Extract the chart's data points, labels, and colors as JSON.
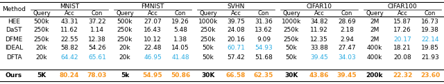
{
  "columns": {
    "datasets": [
      "MNIST",
      "FMNIST",
      "SVHN",
      "CIFAR10",
      "CIFAR100"
    ],
    "subcols": [
      "Query",
      "Acc",
      "Con"
    ]
  },
  "methods": [
    "HEE",
    "DaST",
    "DFME",
    "IDEAL",
    "DFTA",
    "Ours"
  ],
  "data": {
    "MNIST": {
      "HEE": [
        "500k",
        "43.31",
        "37.22"
      ],
      "DaST": [
        "250k",
        "11.62",
        "1.14"
      ],
      "DFME": [
        "250k",
        "22.55",
        "12.38"
      ],
      "IDEAL": [
        "20k",
        "58.82",
        "54.26"
      ],
      "DFTA": [
        "20k",
        "64.42",
        "65.61"
      ],
      "Ours": [
        "5K",
        "80.24",
        "78.03"
      ]
    },
    "FMNIST": {
      "HEE": [
        "500k",
        "27.07",
        "19.26"
      ],
      "DaST": [
        "250k",
        "16.43",
        "5.48"
      ],
      "DFME": [
        "250k",
        "10.12",
        "1.38"
      ],
      "IDEAL": [
        "20k",
        "22.48",
        "14.05"
      ],
      "DFTA": [
        "20k",
        "46.95",
        "41.48"
      ],
      "Ours": [
        "5k",
        "54.95",
        "50.86"
      ]
    },
    "SVHN": {
      "HEE": [
        "1000k",
        "39.75",
        "31.36"
      ],
      "DaST": [
        "250k",
        "24.08",
        "13.62"
      ],
      "DFME": [
        "250k",
        "20.16",
        "9.09"
      ],
      "IDEAL": [
        "50k",
        "60.71",
        "54.93"
      ],
      "DFTA": [
        "50k",
        "57.42",
        "51.68"
      ],
      "Ours": [
        "30K",
        "66.58",
        "62.35"
      ]
    },
    "CIFAR10": {
      "HEE": [
        "1000k",
        "34.82",
        "28.69"
      ],
      "DaST": [
        "250k",
        "11.92",
        "2.18"
      ],
      "DFME": [
        "250k",
        "12.35",
        "2.94"
      ],
      "IDEAL": [
        "50k",
        "33.88",
        "27.47"
      ],
      "DFTA": [
        "50k",
        "39.45",
        "34.03"
      ],
      "Ours": [
        "30K",
        "43.86",
        "39.45"
      ]
    },
    "CIFAR100": {
      "HEE": [
        "2M",
        "15.87",
        "16.73"
      ],
      "DaST": [
        "2M",
        "17.26",
        "19.38"
      ],
      "DFME": [
        "2M",
        "20.17",
        "22.14"
      ],
      "IDEAL": [
        "400k",
        "18.21",
        "19.85"
      ],
      "DFTA": [
        "400k",
        "20.08",
        "21.93"
      ],
      "Ours": [
        "200k",
        "22.32",
        "23.60"
      ]
    }
  },
  "special_colors": {
    "MNIST": {
      "DFTA": {
        "Acc": "#29abe2",
        "Con": "#29abe2"
      },
      "Ours": {
        "Acc": "#f7941d",
        "Con": "#f7941d"
      }
    },
    "FMNIST": {
      "DFTA": {
        "Acc": "#29abe2",
        "Con": "#29abe2"
      },
      "Ours": {
        "Acc": "#f7941d",
        "Con": "#f7941d"
      }
    },
    "SVHN": {
      "IDEAL": {
        "Acc": "#29abe2",
        "Con": "#29abe2"
      },
      "Ours": {
        "Acc": "#f7941d",
        "Con": "#f7941d"
      }
    },
    "CIFAR10": {
      "DFTA": {
        "Acc": "#29abe2",
        "Con": "#29abe2"
      },
      "Ours": {
        "Acc": "#f7941d",
        "Con": "#f7941d"
      }
    },
    "CIFAR100": {
      "DFME": {
        "Acc": "#29abe2",
        "Con": "#29abe2"
      },
      "Ours": {
        "Acc": "#f7941d",
        "Con": "#f7941d"
      }
    }
  },
  "bold_rows": [
    "Ours"
  ]
}
